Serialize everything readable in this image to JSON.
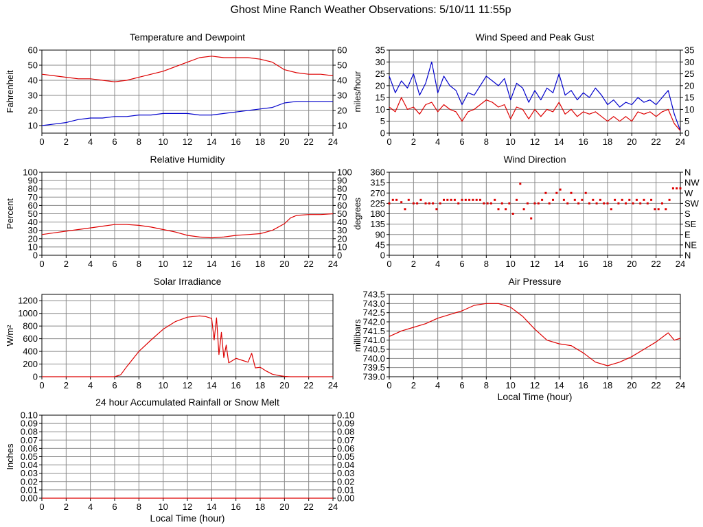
{
  "page_title": "Ghost Mine Ranch Weather Observations: 5/10/11 11:55p",
  "colors": {
    "red": "#dd0000",
    "blue": "#0000cc",
    "grid": "#888888",
    "frame": "#000000"
  },
  "chart_data": [
    {
      "id": "temperature",
      "type": "line",
      "title": "Temperature and Dewpoint",
      "xlabel": "",
      "ylabel": "Fahrenheit",
      "xlim": [
        0,
        24
      ],
      "ylim": [
        5,
        60
      ],
      "x_ticks": [
        0,
        2,
        4,
        6,
        8,
        10,
        12,
        14,
        16,
        18,
        20,
        22,
        24
      ],
      "y_ticks": [
        10,
        20,
        30,
        40,
        50,
        60
      ],
      "y_tick_labels": [
        "10",
        "20",
        "30",
        "40",
        "50",
        "60"
      ],
      "right_tick_labels": [
        "10",
        "20",
        "30",
        "40",
        "50",
        "60"
      ],
      "series": [
        {
          "color": "#dd0000",
          "x": [
            0,
            1,
            2,
            3,
            4,
            5,
            6,
            7,
            8,
            9,
            10,
            11,
            12,
            13,
            14,
            15,
            16,
            17,
            18,
            19,
            20,
            21,
            22,
            23,
            24
          ],
          "y": [
            44,
            43,
            42,
            41,
            41,
            40,
            39,
            40,
            42,
            44,
            46,
            49,
            52,
            55,
            56,
            55,
            55,
            55,
            54,
            52,
            47,
            45,
            44,
            44,
            43
          ]
        },
        {
          "color": "#0000cc",
          "x": [
            0,
            1,
            2,
            3,
            4,
            5,
            6,
            7,
            8,
            9,
            10,
            11,
            12,
            13,
            14,
            15,
            16,
            17,
            18,
            19,
            20,
            21,
            22,
            23,
            24
          ],
          "y": [
            10,
            11,
            12,
            14,
            15,
            15,
            16,
            16,
            17,
            17,
            18,
            18,
            18,
            17,
            17,
            18,
            19,
            20,
            21,
            22,
            25,
            26,
            26,
            26,
            26
          ]
        }
      ]
    },
    {
      "id": "wind-speed",
      "type": "line",
      "title": "Wind Speed and Peak Gust",
      "xlabel": "",
      "ylabel": "miles/hour",
      "xlim": [
        0,
        24
      ],
      "ylim": [
        0,
        35
      ],
      "x_ticks": [
        0,
        2,
        4,
        6,
        8,
        10,
        12,
        14,
        16,
        18,
        20,
        22,
        24
      ],
      "y_ticks": [
        0,
        5,
        10,
        15,
        20,
        25,
        30,
        35
      ],
      "y_tick_labels": [
        "0",
        "5",
        "10",
        "15",
        "20",
        "25",
        "30",
        "35"
      ],
      "right_tick_labels": [
        "0",
        "5",
        "10",
        "15",
        "20",
        "25",
        "30",
        "35"
      ],
      "series": [
        {
          "color": "#0000cc",
          "x": [
            0,
            0.5,
            1,
            1.5,
            2,
            2.5,
            3,
            3.5,
            4,
            4.5,
            5,
            5.5,
            6,
            6.5,
            7,
            7.5,
            8,
            8.5,
            9,
            9.5,
            10,
            10.5,
            11,
            11.5,
            12,
            12.5,
            13,
            13.5,
            14,
            14.5,
            15,
            15.5,
            16,
            16.5,
            17,
            17.5,
            18,
            18.5,
            19,
            19.5,
            20,
            20.5,
            21,
            21.5,
            22,
            22.5,
            23,
            23.5,
            24
          ],
          "y": [
            24,
            17,
            22,
            19,
            25,
            16,
            21,
            30,
            17,
            24,
            20,
            18,
            12,
            17,
            16,
            20,
            24,
            22,
            20,
            23,
            14,
            21,
            19,
            13,
            18,
            14,
            19,
            17,
            25,
            16,
            18,
            14,
            17,
            15,
            19,
            16,
            12,
            14,
            11,
            13,
            12,
            15,
            13,
            14,
            12,
            15,
            18,
            8,
            1
          ]
        },
        {
          "color": "#dd0000",
          "x": [
            0,
            0.5,
            1,
            1.5,
            2,
            2.5,
            3,
            3.5,
            4,
            4.5,
            5,
            5.5,
            6,
            6.5,
            7,
            7.5,
            8,
            8.5,
            9,
            9.5,
            10,
            10.5,
            11,
            11.5,
            12,
            12.5,
            13,
            13.5,
            14,
            14.5,
            15,
            15.5,
            16,
            16.5,
            17,
            17.5,
            18,
            18.5,
            19,
            19.5,
            20,
            20.5,
            21,
            21.5,
            22,
            22.5,
            23,
            23.5,
            24
          ],
          "y": [
            11,
            9,
            15,
            10,
            11,
            8,
            12,
            13,
            9,
            12,
            10,
            9,
            5,
            9,
            10,
            12,
            14,
            13,
            11,
            12,
            6,
            11,
            10,
            6,
            10,
            7,
            10,
            9,
            13,
            8,
            10,
            7,
            9,
            8,
            9,
            7,
            5,
            7,
            5,
            7,
            5,
            9,
            8,
            9,
            7,
            9,
            10,
            4,
            1
          ]
        }
      ]
    },
    {
      "id": "humidity",
      "type": "line",
      "title": "Relative Humidity",
      "xlabel": "",
      "ylabel": "Percent",
      "xlim": [
        0,
        24
      ],
      "ylim": [
        0,
        100
      ],
      "x_ticks": [
        0,
        2,
        4,
        6,
        8,
        10,
        12,
        14,
        16,
        18,
        20,
        22,
        24
      ],
      "y_ticks": [
        0,
        10,
        20,
        30,
        40,
        50,
        60,
        70,
        80,
        90,
        100
      ],
      "y_tick_labels": [
        "0",
        "10",
        "20",
        "30",
        "40",
        "50",
        "60",
        "70",
        "80",
        "90",
        "100"
      ],
      "right_tick_labels": [
        "0",
        "10",
        "20",
        "30",
        "40",
        "50",
        "60",
        "70",
        "80",
        "90",
        "100"
      ],
      "series": [
        {
          "color": "#dd0000",
          "x": [
            0,
            1,
            2,
            3,
            4,
            5,
            6,
            7,
            8,
            9,
            10,
            11,
            12,
            13,
            14,
            15,
            16,
            17,
            18,
            19,
            20,
            20.5,
            21,
            22,
            23,
            24
          ],
          "y": [
            25,
            27,
            29,
            31,
            33,
            35,
            37,
            37,
            36,
            34,
            31,
            28,
            24,
            22,
            21,
            22,
            24,
            25,
            26,
            30,
            38,
            45,
            48,
            49,
            49,
            50
          ]
        }
      ]
    },
    {
      "id": "wind-direction",
      "type": "scatter",
      "title": "Wind Direction",
      "xlabel": "",
      "ylabel": "degrees",
      "xlim": [
        0,
        24
      ],
      "ylim": [
        0,
        360
      ],
      "x_ticks": [
        0,
        2,
        4,
        6,
        8,
        10,
        12,
        14,
        16,
        18,
        20,
        22,
        24
      ],
      "y_ticks": [
        0,
        45,
        90,
        135,
        180,
        225,
        270,
        315,
        360
      ],
      "y_tick_labels": [
        "0",
        "45",
        "90",
        "135",
        "180",
        "225",
        "270",
        "315",
        "360"
      ],
      "right_tick_labels": [
        "N",
        "NE",
        "E",
        "SE",
        "S",
        "SW",
        "W",
        "NW",
        "N"
      ],
      "series": [
        {
          "color": "#dd0000",
          "x": [
            0,
            0.3,
            0.6,
            1,
            1.3,
            1.6,
            2,
            2.3,
            2.6,
            3,
            3.3,
            3.6,
            3.9,
            4.2,
            4.5,
            4.8,
            5.1,
            5.4,
            5.7,
            6,
            6.3,
            6.6,
            6.9,
            7.2,
            7.5,
            7.8,
            8.1,
            8.4,
            8.7,
            9,
            9.3,
            9.6,
            9.9,
            10.2,
            10.5,
            10.8,
            11.1,
            11.4,
            11.7,
            12,
            12.3,
            12.6,
            12.9,
            13.2,
            13.5,
            13.8,
            14.1,
            14.4,
            14.7,
            15,
            15.3,
            15.6,
            15.9,
            16.2,
            16.5,
            16.8,
            17.1,
            17.4,
            17.7,
            18,
            18.3,
            18.6,
            18.9,
            19.2,
            19.5,
            19.8,
            20.1,
            20.4,
            20.7,
            21,
            21.3,
            21.6,
            21.9,
            22.2,
            22.5,
            22.8,
            23.1,
            23.4,
            23.7,
            24
          ],
          "y": [
            225,
            240,
            240,
            230,
            200,
            240,
            225,
            225,
            240,
            225,
            225,
            225,
            200,
            225,
            240,
            240,
            240,
            240,
            225,
            240,
            240,
            240,
            240,
            240,
            240,
            225,
            225,
            225,
            240,
            200,
            225,
            200,
            225,
            180,
            240,
            310,
            200,
            225,
            160,
            225,
            225,
            240,
            270,
            225,
            240,
            270,
            285,
            240,
            225,
            270,
            240,
            225,
            240,
            270,
            225,
            240,
            225,
            240,
            225,
            225,
            200,
            240,
            225,
            240,
            225,
            240,
            225,
            240,
            225,
            240,
            225,
            240,
            200,
            200,
            225,
            200,
            240,
            290,
            290,
            290
          ]
        }
      ]
    },
    {
      "id": "solar",
      "type": "line",
      "title": "Solar Irradiance",
      "xlabel": "",
      "ylabel": "W/m²",
      "xlim": [
        0,
        24
      ],
      "ylim": [
        0,
        1300
      ],
      "x_ticks": [
        0,
        2,
        4,
        6,
        8,
        10,
        12,
        14,
        16,
        18,
        20,
        22,
        24
      ],
      "y_ticks": [
        0,
        200,
        400,
        600,
        800,
        1000,
        1200
      ],
      "y_tick_labels": [
        "0",
        "200",
        "400",
        "600",
        "800",
        "1000",
        "1200"
      ],
      "right_tick_labels": [],
      "series": [
        {
          "color": "#dd0000",
          "x": [
            0,
            6,
            6.5,
            7,
            8,
            9,
            10,
            11,
            12,
            13,
            13.5,
            14,
            14.2,
            14.4,
            14.6,
            14.8,
            15,
            15.2,
            15.4,
            15.6,
            16,
            16.5,
            17,
            17.3,
            17.6,
            18,
            18.5,
            19,
            19.5,
            20,
            20.5,
            21,
            22,
            23,
            24
          ],
          "y": [
            0,
            0,
            30,
            160,
            400,
            580,
            750,
            870,
            940,
            960,
            950,
            920,
            580,
            930,
            350,
            700,
            300,
            500,
            220,
            240,
            290,
            260,
            230,
            370,
            140,
            150,
            90,
            40,
            20,
            5,
            0,
            0,
            0,
            0,
            0
          ]
        }
      ]
    },
    {
      "id": "pressure",
      "type": "line",
      "title": "Air Pressure",
      "xlabel": "Local Time (hour)",
      "ylabel": "millibars",
      "xlim": [
        0,
        24
      ],
      "ylim": [
        739.0,
        743.5
      ],
      "x_ticks": [
        0,
        2,
        4,
        6,
        8,
        10,
        12,
        14,
        16,
        18,
        20,
        22,
        24
      ],
      "y_ticks": [
        739.0,
        739.5,
        740.0,
        740.5,
        741.0,
        741.5,
        742.0,
        742.5,
        743.0,
        743.5
      ],
      "y_tick_labels": [
        "739.0",
        "739.5",
        "740.0",
        "740.5",
        "741.0",
        "741.5",
        "742.0",
        "742.5",
        "743.0",
        "743.5"
      ],
      "right_tick_labels": [],
      "series": [
        {
          "color": "#dd0000",
          "x": [
            0,
            1,
            2,
            3,
            4,
            5,
            6,
            7,
            8,
            9,
            10,
            11,
            12,
            13,
            14,
            15,
            16,
            17,
            18,
            19,
            20,
            21,
            22,
            23,
            23.5,
            24
          ],
          "y": [
            741.2,
            741.5,
            741.7,
            741.9,
            742.2,
            742.4,
            742.6,
            742.9,
            743.0,
            743.0,
            742.8,
            742.3,
            741.6,
            741.0,
            740.8,
            740.7,
            740.3,
            739.8,
            739.6,
            739.8,
            740.1,
            740.5,
            740.9,
            741.4,
            741.0,
            741.1
          ]
        }
      ]
    },
    {
      "id": "rainfall",
      "type": "line",
      "title": "24 hour Accumulated Rainfall or Snow Melt",
      "xlabel": "Local Time (hour)",
      "ylabel": "Inches",
      "xlim": [
        0,
        24
      ],
      "ylim": [
        0,
        0.1
      ],
      "x_ticks": [
        0,
        2,
        4,
        6,
        8,
        10,
        12,
        14,
        16,
        18,
        20,
        22,
        24
      ],
      "y_ticks": [
        0,
        0.01,
        0.02,
        0.03,
        0.04,
        0.05,
        0.06,
        0.07,
        0.08,
        0.09,
        0.1
      ],
      "y_tick_labels": [
        "0.00",
        "0.01",
        "0.02",
        "0.03",
        "0.04",
        "0.05",
        "0.06",
        "0.07",
        "0.08",
        "0.09",
        "0.10"
      ],
      "right_tick_labels": [
        "0.00",
        "0.01",
        "0.02",
        "0.03",
        "0.04",
        "0.05",
        "0.06",
        "0.07",
        "0.08",
        "0.09",
        "0.10"
      ],
      "series": [
        {
          "color": "#dd0000",
          "x": [
            0,
            24
          ],
          "y": [
            0,
            0
          ]
        }
      ]
    }
  ]
}
